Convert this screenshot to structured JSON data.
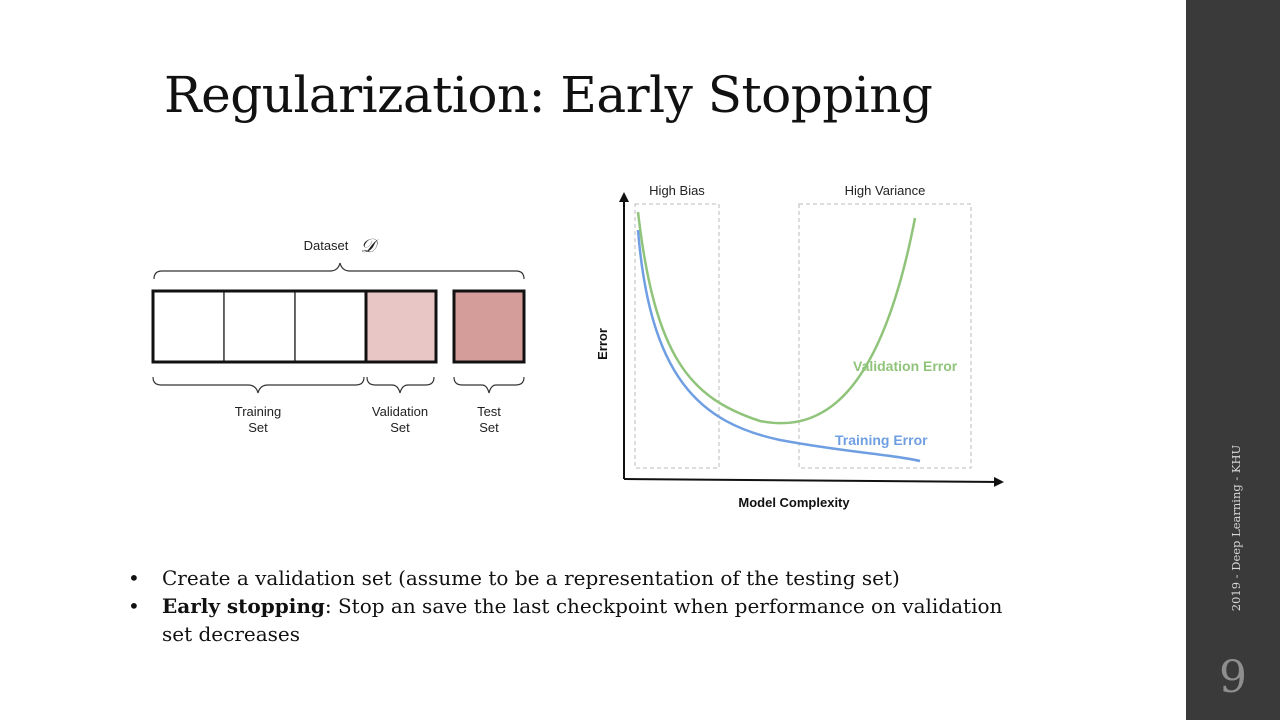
{
  "slide": {
    "title": "Regularization: Early Stopping",
    "footer": "2019 - Deep Learning - KHU",
    "page_number": "9"
  },
  "dataset_diagram": {
    "dataset_label": "Dataset",
    "dataset_symbol": "𝒟",
    "training_label_line1": "Training",
    "training_label_line2": "Set",
    "validation_label_line1": "Validation",
    "validation_label_line2": "Set",
    "test_label_line1": "Test",
    "test_label_line2": "Set",
    "colors": {
      "validation": "#e8c6c5",
      "test": "#d59d9a"
    }
  },
  "error_chart": {
    "high_bias_label": "High Bias",
    "high_variance_label": "High Variance",
    "y_axis_label": "Error",
    "x_axis_label": "Model Complexity",
    "validation_label": "Validation Error",
    "training_label": "Training Error",
    "colors": {
      "validation": "#8fc47a",
      "training": "#6f9fe2"
    }
  },
  "bullets": [
    {
      "bold": "",
      "text": "Create a validation set (assume to be a representation of the testing set)"
    },
    {
      "bold": "Early stopping",
      "text": ": Stop an save the last checkpoint when performance on validation set decreases"
    }
  ]
}
